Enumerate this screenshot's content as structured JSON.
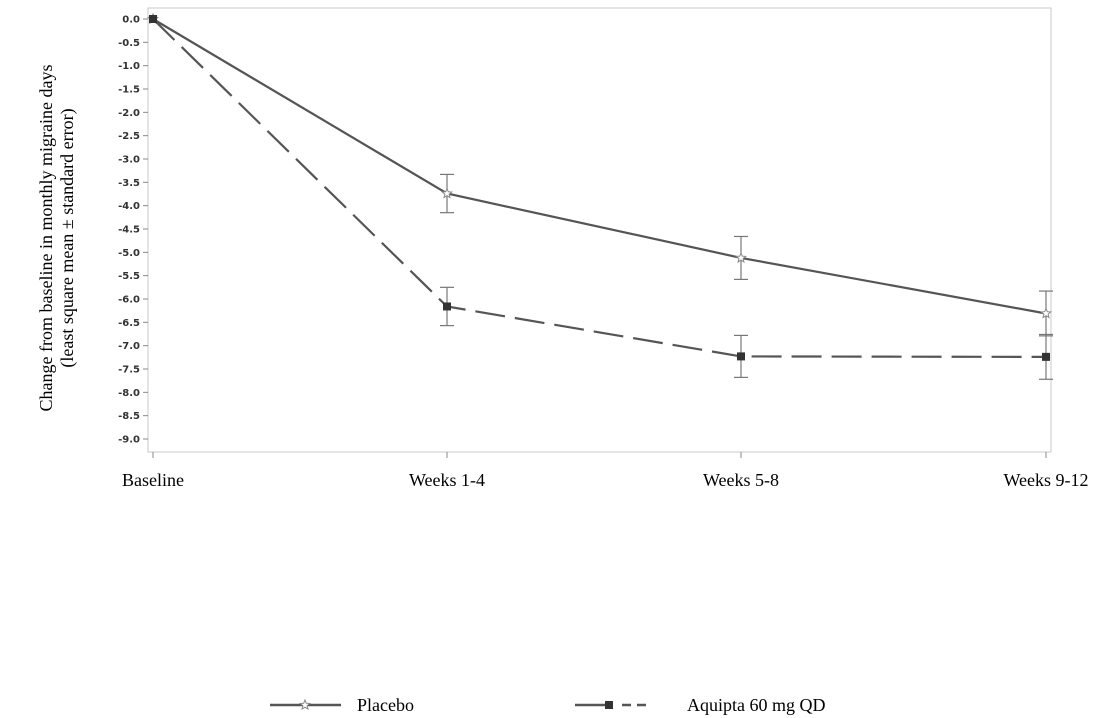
{
  "chart_data": {
    "type": "line",
    "categories": [
      "Baseline",
      "Weeks 1-4",
      "Weeks 5-8",
      "Weeks 9-12"
    ],
    "ylabel_lines": [
      "Change from baseline in monthly migraine days",
      "(least square mean ± standard error)"
    ],
    "ylim": [
      -9.0,
      0.0
    ],
    "yticks": [
      "0.0",
      "-0.5",
      "-1.0",
      "-1.5",
      "-2.0",
      "-2.5",
      "-3.0",
      "-3.5",
      "-4.0",
      "-4.5",
      "-5.0",
      "-5.5",
      "-6.0",
      "-6.5",
      "-7.0",
      "-7.5",
      "-8.0",
      "-8.5",
      "-9.0"
    ],
    "grid": false,
    "legend_position": "bottom",
    "series": [
      {
        "name": "Placebo",
        "line_style": "solid",
        "marker": "star",
        "color": "#555555",
        "values": [
          0.0,
          -3.74,
          -5.12,
          -6.31
        ],
        "error": [
          0,
          0.41,
          0.46,
          0.48
        ]
      },
      {
        "name": "Aquipta 60 mg QD",
        "line_style": "dashed",
        "marker": "square",
        "color": "#555555",
        "values": [
          0.0,
          -6.16,
          -7.23,
          -7.24
        ],
        "error": [
          0,
          0.41,
          0.45,
          0.48
        ]
      }
    ]
  }
}
